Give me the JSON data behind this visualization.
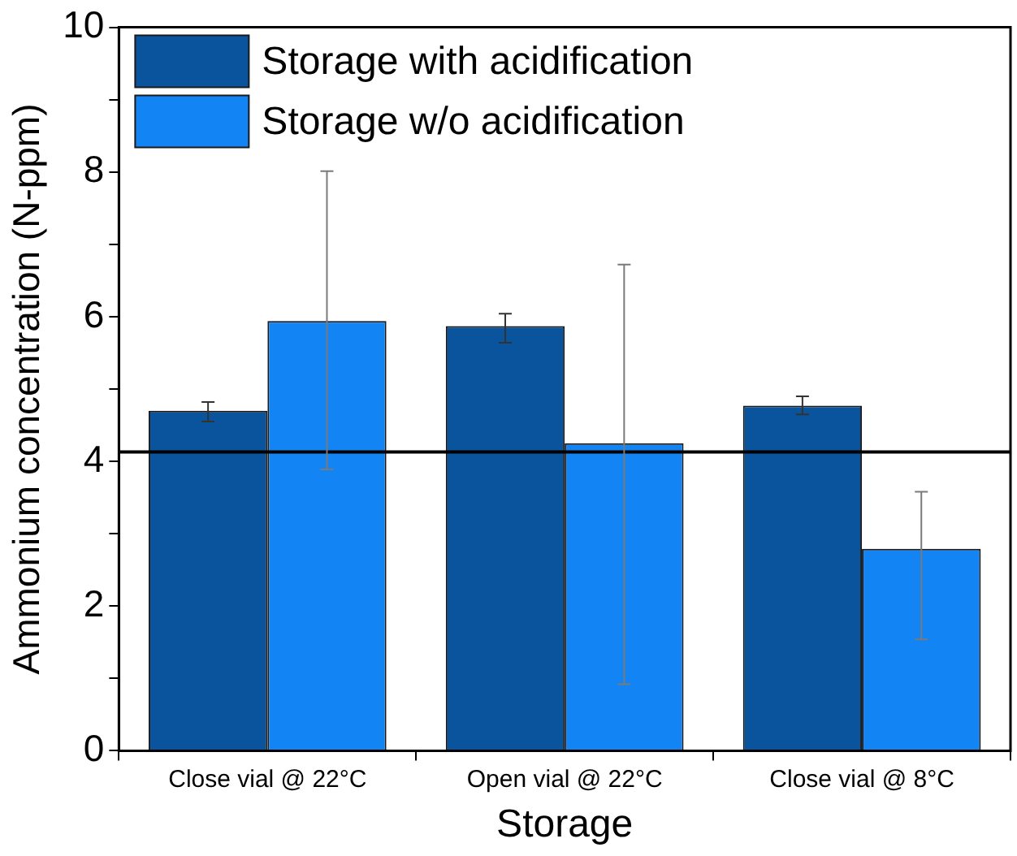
{
  "chart_data": {
    "type": "bar",
    "xlabel": "Storage",
    "ylabel": "Ammonium concentration (N-ppm)",
    "categories": [
      "Close vial @ 22°C",
      "Open vial @ 22°C",
      "Close vial @ 8°C"
    ],
    "series": [
      {
        "name": "Storage with acidification",
        "color": "#0a539d",
        "values": [
          4.7,
          5.87,
          4.77
        ],
        "errors": [
          [
            4.55,
            4.82
          ],
          [
            5.64,
            6.04
          ],
          [
            4.65,
            4.9
          ]
        ]
      },
      {
        "name": "Storage w/o acidification",
        "color": "#1284f4",
        "values": [
          5.94,
          4.25,
          2.79
        ],
        "errors": [
          [
            3.89,
            8.01
          ],
          [
            0.92,
            6.72
          ],
          [
            1.54,
            3.58
          ]
        ]
      }
    ],
    "ylim": [
      0,
      10
    ],
    "yticks": [
      0,
      {
        "value": 1,
        "label": null
      },
      2,
      {
        "value": 3,
        "label": null
      },
      4,
      {
        "value": 5,
        "label": null
      },
      6,
      {
        "value": 7,
        "label": null
      },
      8,
      {
        "value": 9,
        "label": null
      },
      10
    ],
    "ref_lines": [
      {
        "axis": "y",
        "value": 4.13,
        "color": "#000000"
      }
    ],
    "legend": "top left"
  }
}
